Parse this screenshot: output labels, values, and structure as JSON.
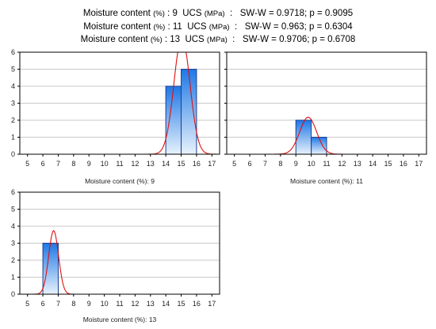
{
  "header": {
    "lines": [
      {
        "prefix": "Moisture content ",
        "unit": "(%)",
        "mid": " : 9  UCS ",
        "unit2": "(MPa)",
        "stats": "  :   SW-W = 0.9718; p = 0.9095"
      },
      {
        "prefix": "Moisture content ",
        "unit": "(%)",
        "mid": " : 11  UCS ",
        "unit2": "(MPa)",
        "stats": "  :   SW-W = 0.963; p = 0.6304"
      },
      {
        "prefix": "Moisture content ",
        "unit": "(%)",
        "mid": " : 13  UCS ",
        "unit2": "(MPa)",
        "stats": "  :   SW-W = 0.9706; p = 0.6708"
      }
    ]
  },
  "colors": {
    "bar_fill_top": "#1e78e6",
    "bar_fill_bottom": "#e8f2fc",
    "bar_stroke": "#1f3f8f",
    "curve": "#e01010",
    "grid": "#c9c9c9",
    "frame": "#000000"
  },
  "chart_data": [
    {
      "type": "bar",
      "title": "",
      "xlabel": "Moisture content (%): 9",
      "ylabel": "",
      "xlim": [
        4.5,
        17.5
      ],
      "ylim": [
        0,
        6
      ],
      "xticks": [
        5,
        6,
        7,
        8,
        9,
        10,
        11,
        12,
        13,
        14,
        15,
        16,
        17
      ],
      "yticks": [
        0,
        1,
        2,
        3,
        4,
        5,
        6
      ],
      "y_tick_labels": true,
      "bins": [
        {
          "x0": 14,
          "x1": 15,
          "count": 4
        },
        {
          "x0": 15,
          "x1": 16,
          "count": 5
        }
      ],
      "normal_curve": {
        "mean": 15.05,
        "sd": 0.52,
        "n": 9,
        "binwidth": 1
      },
      "grid": true
    },
    {
      "type": "bar",
      "title": "",
      "xlabel": "Moisture content (%): 11",
      "ylabel": "",
      "xlim": [
        4.5,
        17.5
      ],
      "ylim": [
        0,
        6
      ],
      "xticks": [
        5,
        6,
        7,
        8,
        9,
        10,
        11,
        12,
        13,
        14,
        15,
        16,
        17
      ],
      "yticks": [
        0,
        1,
        2,
        3,
        4,
        5,
        6
      ],
      "y_tick_labels": false,
      "bins": [
        {
          "x0": 9,
          "x1": 10,
          "count": 2
        },
        {
          "x0": 10,
          "x1": 11,
          "count": 1
        }
      ],
      "normal_curve": {
        "mean": 9.8,
        "sd": 0.55,
        "n": 3,
        "binwidth": 1
      },
      "grid": true
    },
    {
      "type": "bar",
      "title": "",
      "xlabel": "Moisture content (%): 13",
      "ylabel": "",
      "xlim": [
        4.5,
        17.5
      ],
      "ylim": [
        0,
        6
      ],
      "xticks": [
        5,
        6,
        7,
        8,
        9,
        10,
        11,
        12,
        13,
        14,
        15,
        16,
        17
      ],
      "yticks": [
        0,
        1,
        2,
        3,
        4,
        5,
        6
      ],
      "y_tick_labels": true,
      "bins": [
        {
          "x0": 6,
          "x1": 7,
          "count": 3
        }
      ],
      "normal_curve": {
        "mean": 6.7,
        "sd": 0.32,
        "n": 3,
        "binwidth": 1
      },
      "grid": true
    }
  ]
}
